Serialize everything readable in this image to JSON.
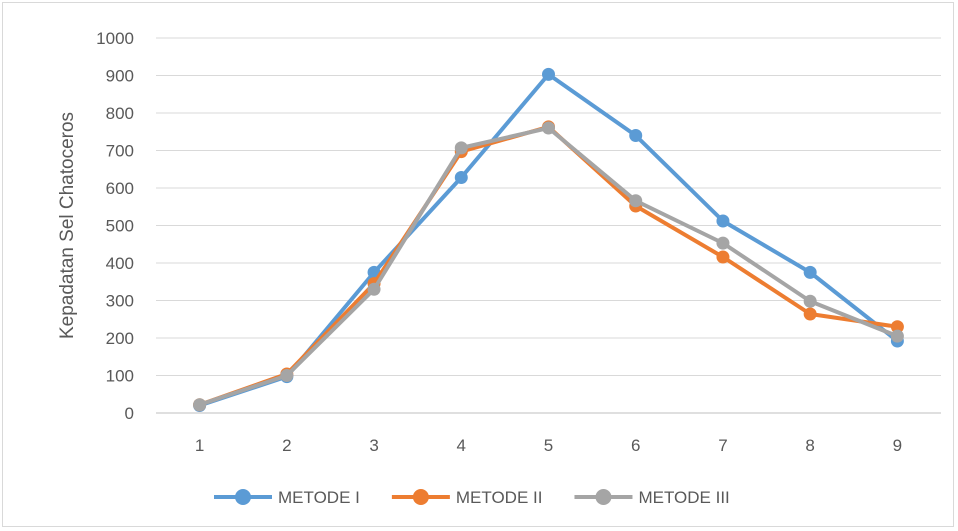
{
  "chart_data": {
    "type": "line",
    "title": "",
    "xlabel": "",
    "ylabel": "Kepadatan Sel Chatoceros",
    "x": [
      1,
      2,
      3,
      4,
      5,
      6,
      7,
      8,
      9
    ],
    "ylim": [
      0,
      1000
    ],
    "yticks": [
      0,
      100,
      200,
      300,
      400,
      500,
      600,
      700,
      800,
      900,
      1000
    ],
    "grid": true,
    "legend_position": "bottom",
    "series": [
      {
        "name": "METODE I",
        "color": "#5b9bd5",
        "values": [
          20,
          97,
          375,
          628,
          903,
          740,
          512,
          375,
          192
        ]
      },
      {
        "name": "METODE II",
        "color": "#ed7d31",
        "values": [
          22,
          104,
          345,
          697,
          763,
          552,
          416,
          264,
          230
        ]
      },
      {
        "name": "METODE III",
        "color": "#a5a5a5",
        "values": [
          22,
          100,
          330,
          707,
          760,
          566,
          453,
          298,
          205
        ]
      }
    ]
  }
}
